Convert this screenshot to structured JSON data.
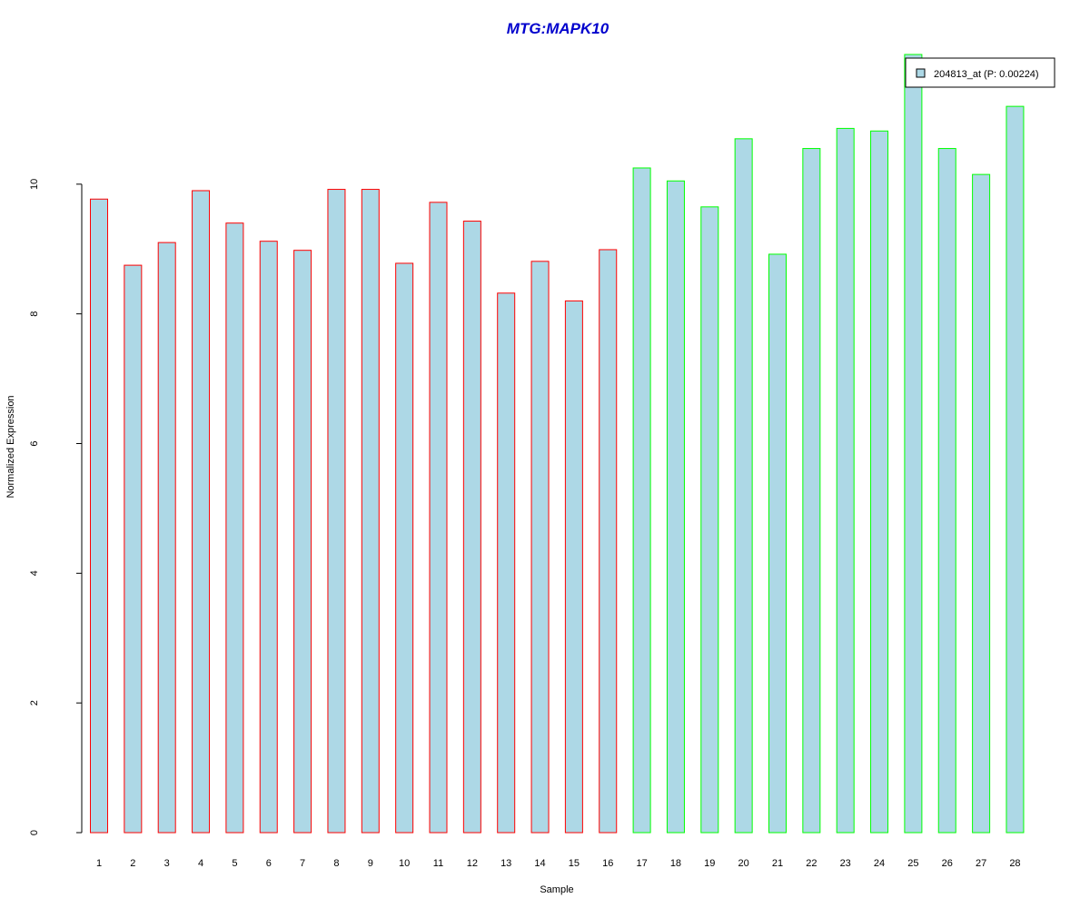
{
  "chart_data": {
    "type": "bar",
    "title": "MTG:MAPK10",
    "xlabel": "Sample",
    "ylabel": "Normalized Expression",
    "ylim": [
      0,
      12
    ],
    "yticks": [
      0,
      2,
      4,
      6,
      8,
      10
    ],
    "categories": [
      "1",
      "2",
      "3",
      "4",
      "5",
      "6",
      "7",
      "8",
      "9",
      "10",
      "11",
      "12",
      "13",
      "14",
      "15",
      "16",
      "17",
      "18",
      "19",
      "20",
      "21",
      "22",
      "23",
      "24",
      "25",
      "26",
      "27",
      "28"
    ],
    "values": [
      9.77,
      8.75,
      9.1,
      9.9,
      9.4,
      9.12,
      8.98,
      9.92,
      9.92,
      8.78,
      9.72,
      9.43,
      8.32,
      8.81,
      8.2,
      8.99,
      10.25,
      10.05,
      9.65,
      10.7,
      8.92,
      10.55,
      10.86,
      10.82,
      12.0,
      10.55,
      10.15,
      11.2
    ],
    "groups": [
      {
        "samples": [
          1,
          16
        ],
        "border_color": "#ff0000"
      },
      {
        "samples": [
          17,
          28
        ],
        "border_color": "#00ff00"
      }
    ],
    "legend": {
      "position": "top-right",
      "label": "204813_at (P: 0.00224)"
    },
    "colors": {
      "bar_fill": "#add8e6",
      "title": "#0000cd",
      "axis": "#000000"
    },
    "grid": false
  }
}
